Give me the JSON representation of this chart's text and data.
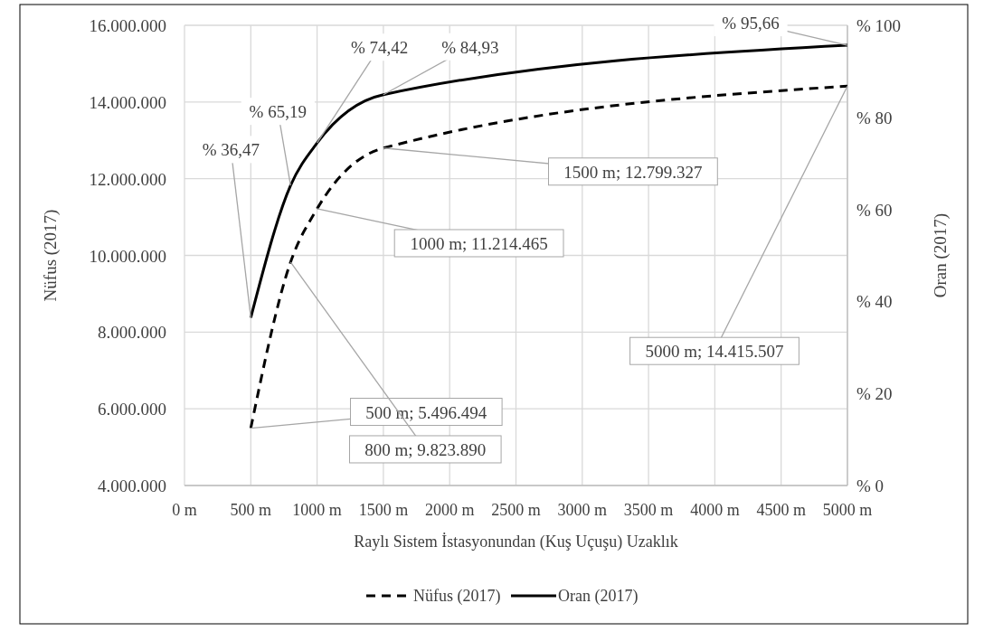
{
  "chart_data": {
    "type": "line",
    "xlabel": "Raylı Sistem İstasyonundan  (Kuş Uçuşu) Uzaklık",
    "ylabel": "Nüfus (2017)",
    "y2label": "Oran (2017)",
    "x": [
      500,
      800,
      1000,
      1500,
      5000
    ],
    "xlim": [
      0,
      5000
    ],
    "xticks": [
      {
        "value": 0,
        "label": "0 m"
      },
      {
        "value": 500,
        "label": "500 m"
      },
      {
        "value": 1000,
        "label": "1000 m"
      },
      {
        "value": 1500,
        "label": "1500 m"
      },
      {
        "value": 2000,
        "label": "2000 m"
      },
      {
        "value": 2500,
        "label": "2500 m"
      },
      {
        "value": 3000,
        "label": "3000 m"
      },
      {
        "value": 3500,
        "label": "3500 m"
      },
      {
        "value": 4000,
        "label": "4000 m"
      },
      {
        "value": 4500,
        "label": "4500 m"
      },
      {
        "value": 5000,
        "label": "5000 m"
      }
    ],
    "ylim": [
      4000000,
      16000000
    ],
    "yticks": [
      {
        "value": 4000000,
        "label": "4.000.000"
      },
      {
        "value": 6000000,
        "label": "6.000.000"
      },
      {
        "value": 8000000,
        "label": "8.000.000"
      },
      {
        "value": 10000000,
        "label": "10.000.000"
      },
      {
        "value": 12000000,
        "label": "12.000.000"
      },
      {
        "value": 14000000,
        "label": "14.000.000"
      },
      {
        "value": 16000000,
        "label": "16.000.000"
      }
    ],
    "y2lim": [
      0,
      100
    ],
    "y2ticks": [
      {
        "value": 0,
        "label": "% 0"
      },
      {
        "value": 20,
        "label": "% 20"
      },
      {
        "value": 40,
        "label": "% 40"
      },
      {
        "value": 60,
        "label": "% 60"
      },
      {
        "value": 80,
        "label": "% 80"
      },
      {
        "value": 100,
        "label": "% 100"
      }
    ],
    "series": [
      {
        "name": "Nüfus (2017)",
        "color": "#000000",
        "line_style": "dashed",
        "values": [
          5496494,
          9823890,
          11214465,
          12799327,
          14415507
        ],
        "value_labels": [
          "500 m; 5.496.494",
          "800 m; 9.823.890",
          "1000 m; 11.214.465",
          "1500 m; 12.799.327",
          "5000 m; 14.415.507"
        ]
      },
      {
        "name": "Oran (2017)",
        "color": "#000000",
        "line_style": "solid",
        "axis": "y2",
        "values": [
          36.47,
          65.19,
          74.42,
          84.93,
          95.66
        ],
        "value_labels": [
          "% 36,47",
          "% 65,19",
          "% 74,42",
          "% 84,93",
          "% 95,66"
        ]
      }
    ],
    "grid": true,
    "legend": "bottom",
    "marker": "none"
  }
}
